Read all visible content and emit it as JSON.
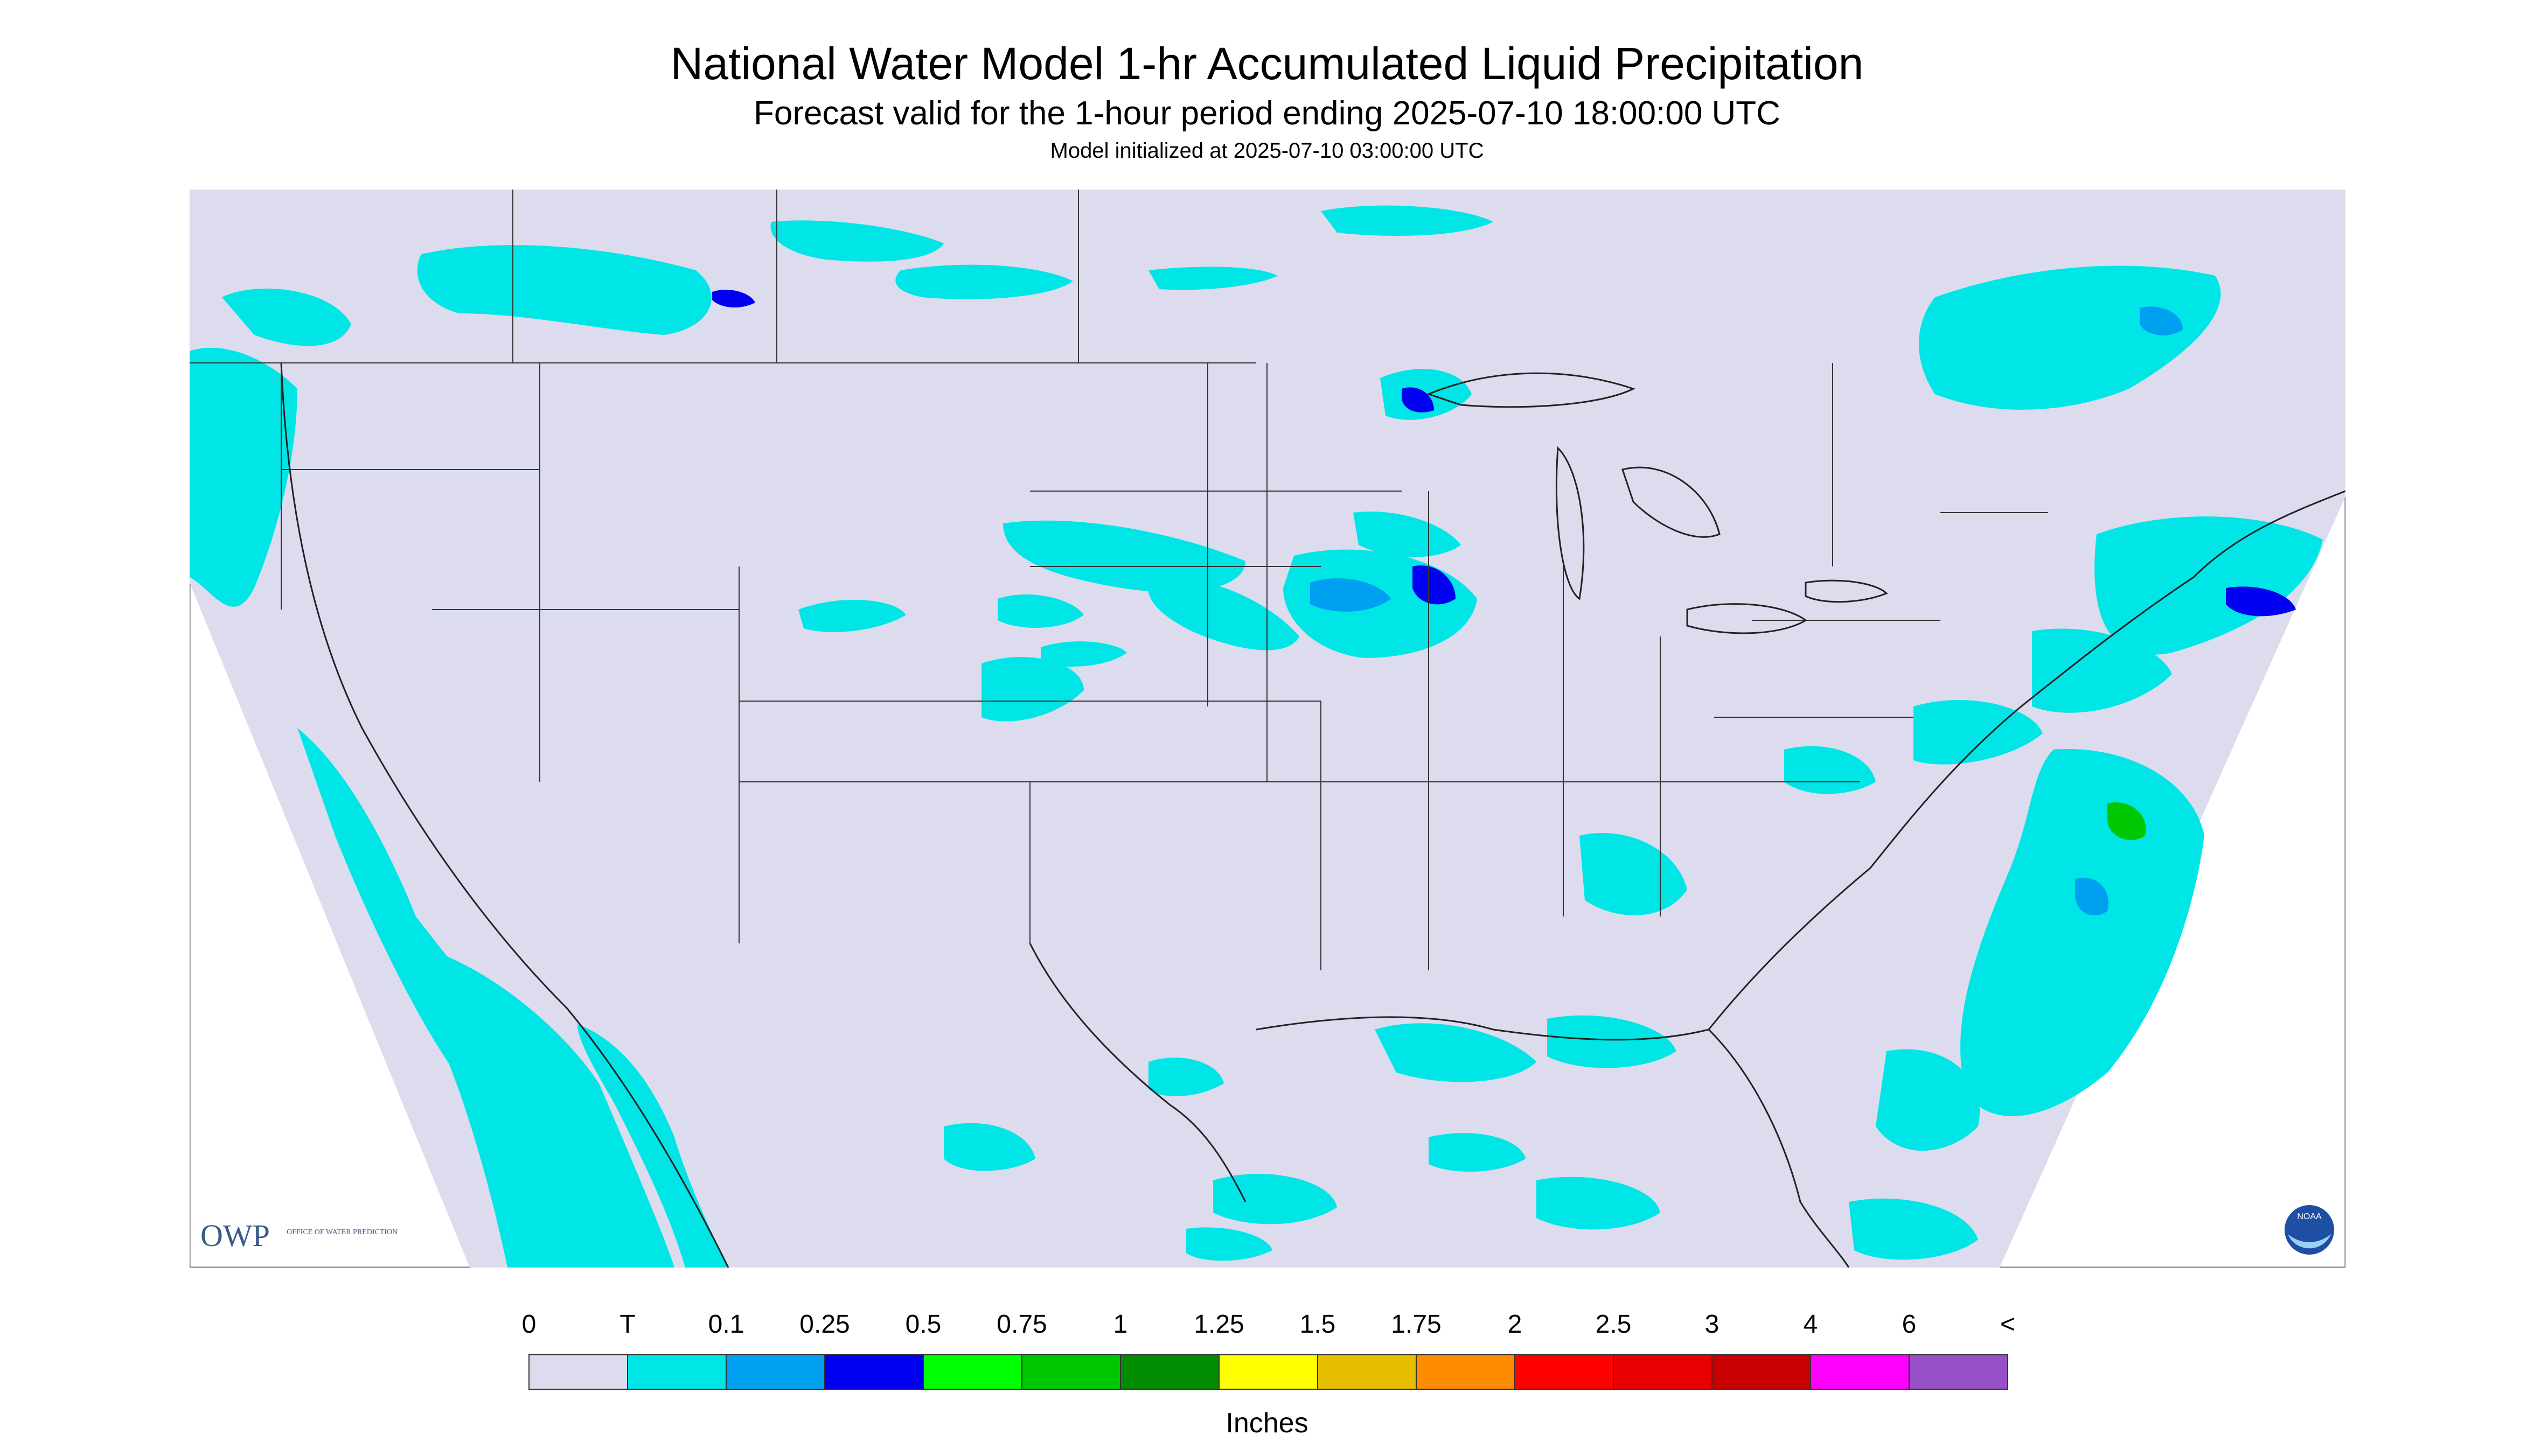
{
  "title": "National Water Model 1-hr Accumulated Liquid Precipitation",
  "subtitle": "Forecast valid for the 1-hour period ending 2025-07-10 18:00:00 UTC",
  "init_text": "Model initialized at 2025-07-10 03:00:00 UTC",
  "logo": {
    "org": "OWP",
    "org_text": "OFFICE OF WATER PREDICTION",
    "agency": "NOAA"
  },
  "legend": {
    "units": "Inches",
    "labels": [
      "0",
      "T",
      "0.1",
      "0.25",
      "0.5",
      "0.75",
      "1",
      "1.25",
      "1.5",
      "1.75",
      "2",
      "2.5",
      "3",
      "4",
      "6",
      "<"
    ],
    "colors": [
      "#dcdcee",
      "#00e6e6",
      "#00a0f0",
      "#0000f0",
      "#00ff00",
      "#00c800",
      "#008c00",
      "#ffff00",
      "#e6be00",
      "#ff8c00",
      "#ff0000",
      "#e60000",
      "#c80000",
      "#ff00ff",
      "#9650c8"
    ]
  },
  "map": {
    "background_color": "#dcdcee",
    "precip_colors": {
      "trace": "#00e6e6",
      "light": "#00a0f0",
      "moderate": "#0000f0",
      "heavy": "#00c800"
    }
  }
}
